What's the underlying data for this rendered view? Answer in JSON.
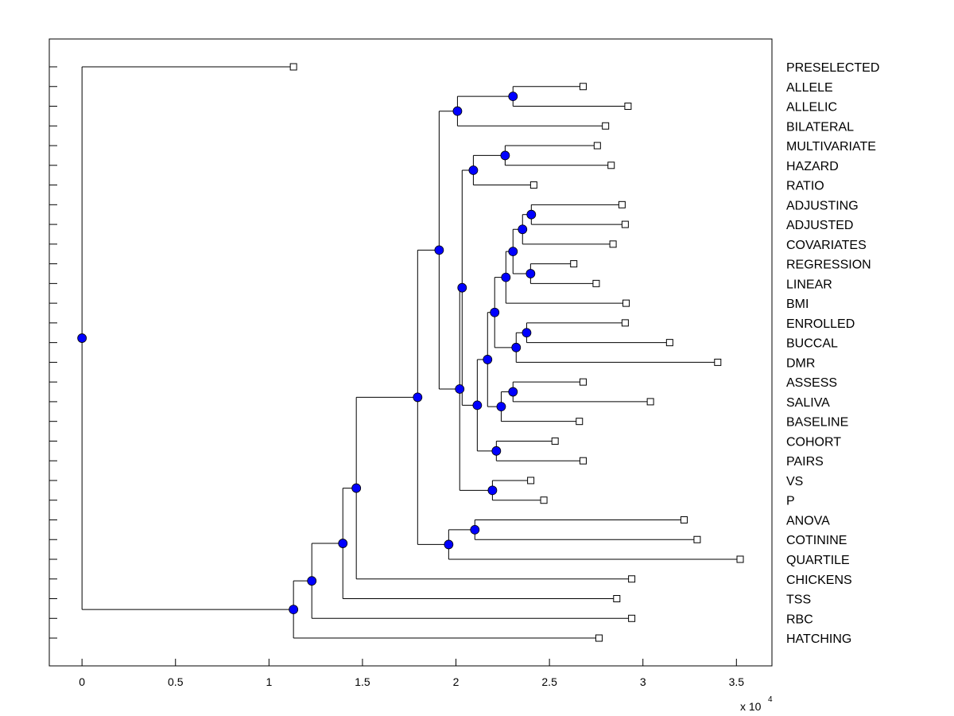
{
  "chart_data": {
    "type": "dendrogram",
    "orientation": "horizontal",
    "xlim": [
      -0.175,
      3.69
    ],
    "x_ticks": [
      0,
      0.5,
      1,
      1.5,
      2,
      2.5,
      3,
      3.5
    ],
    "x_tick_labels": [
      "0",
      "0.5",
      "1",
      "1.5",
      "2",
      "2.5",
      "3",
      "3.5"
    ],
    "x_multiplier_label": "x 10",
    "x_multiplier_exponent": "4",
    "node_color": "#0000ff",
    "leaf_marker": "open-square",
    "tree": {
      "h": 0,
      "c": [
        {
          "label": "PRESELECTED",
          "h": 1.131
        },
        {
          "h": 1.131,
          "c": [
            {
              "h": 1.229,
              "c": [
                {
                  "h": 1.395,
                  "c": [
                    {
                      "h": 1.467,
                      "c": [
                        {
                          "h": 1.795,
                          "c": [
                            {
                              "h": 1.91,
                              "c": [
                                {
                                  "h": 2.008,
                                  "c": [
                                    {
                                      "h": 2.305,
                                      "c": [
                                        {
                                          "label": "ALLELE",
                                          "h": 2.68
                                        },
                                        {
                                          "label": "ALLELIC",
                                          "h": 2.92
                                        }
                                      ]
                                    },
                                    {
                                      "label": "BILATERAL",
                                      "h": 2.8
                                    }
                                  ]
                                },
                                {
                                  "h": 2.02,
                                  "c": [
                                    {
                                      "h": 2.033,
                                      "c": [
                                        {
                                          "h": 2.093,
                                          "c": [
                                            {
                                              "h": 2.263,
                                              "c": [
                                                {
                                                  "label": "MULTIVARIATE",
                                                  "h": 2.756
                                                },
                                                {
                                                  "label": "HAZARD",
                                                  "h": 2.83
                                                }
                                              ]
                                            },
                                            {
                                              "label": "RATIO",
                                              "h": 2.416
                                            }
                                          ]
                                        },
                                        {
                                          "h": 2.114,
                                          "c": [
                                            {
                                              "h": 2.169,
                                              "c": [
                                                {
                                                  "h": 2.207,
                                                  "c": [
                                                    {
                                                      "h": 2.267,
                                                      "c": [
                                                        {
                                                          "h": 2.305,
                                                          "c": [
                                                            {
                                                              "h": 2.356,
                                                              "c": [
                                                                {
                                                                  "h": 2.403,
                                                                  "c": [
                                                                    {
                                                                      "label": "ADJUSTING",
                                                                      "h": 2.888
                                                                    },
                                                                    {
                                                                      "label": "ADJUSTED",
                                                                      "h": 2.905
                                                                    }
                                                                  ]
                                                                },
                                                                {
                                                                  "label": "COVARIATES",
                                                                  "h": 2.84
                                                                }
                                                              ]
                                                            },
                                                            {
                                                              "h": 2.399,
                                                              "c": [
                                                                {
                                                                  "label": "REGRESSION",
                                                                  "h": 2.63
                                                                },
                                                                {
                                                                  "label": "LINEAR",
                                                                  "h": 2.75
                                                                }
                                                              ]
                                                            }
                                                          ]
                                                        },
                                                        {
                                                          "label": "BMI",
                                                          "h": 2.91
                                                        }
                                                      ]
                                                    },
                                                    {
                                                      "h": 2.322,
                                                      "c": [
                                                        {
                                                          "h": 2.378,
                                                          "c": [
                                                            {
                                                              "label": "ENROLLED",
                                                              "h": 2.905
                                                            },
                                                            {
                                                              "label": "BUCCAL",
                                                              "h": 3.143
                                                            }
                                                          ]
                                                        },
                                                        {
                                                          "label": "DMR",
                                                          "h": 3.4
                                                        }
                                                      ]
                                                    }
                                                  ]
                                                },
                                                {
                                                  "h": 2.242,
                                                  "c": [
                                                    {
                                                      "h": 2.305,
                                                      "c": [
                                                        {
                                                          "label": "ASSESS",
                                                          "h": 2.68
                                                        },
                                                        {
                                                          "label": "SALIVA",
                                                          "h": 3.04
                                                        }
                                                      ]
                                                    },
                                                    {
                                                      "label": "BASELINE",
                                                      "h": 2.66
                                                    }
                                                  ]
                                                }
                                              ]
                                            },
                                            {
                                              "h": 2.216,
                                              "c": [
                                                {
                                                  "label": "COHORT",
                                                  "h": 2.53
                                                },
                                                {
                                                  "label": "PAIRS",
                                                  "h": 2.68
                                                }
                                              ]
                                            }
                                          ]
                                        }
                                      ]
                                    },
                                    {
                                      "h": 2.195,
                                      "c": [
                                        {
                                          "label": "VS",
                                          "h": 2.4
                                        },
                                        {
                                          "label": "P",
                                          "h": 2.47
                                        }
                                      ]
                                    }
                                  ]
                                }
                              ]
                            },
                            {
                              "h": 1.961,
                              "c": [
                                {
                                  "h": 2.101,
                                  "c": [
                                    {
                                      "label": "ANOVA",
                                      "h": 3.22
                                    },
                                    {
                                      "label": "COTININE",
                                      "h": 3.29
                                    }
                                  ]
                                },
                                {
                                  "label": "QUARTILE",
                                  "h": 3.52
                                }
                              ]
                            }
                          ]
                        },
                        {
                          "label": "CHICKENS",
                          "h": 2.94
                        }
                      ]
                    },
                    {
                      "label": "TSS",
                      "h": 2.86
                    }
                  ]
                },
                {
                  "label": "RBC",
                  "h": 2.94
                }
              ]
            },
            {
              "label": "HATCHING",
              "h": 2.765
            }
          ]
        }
      ]
    }
  }
}
